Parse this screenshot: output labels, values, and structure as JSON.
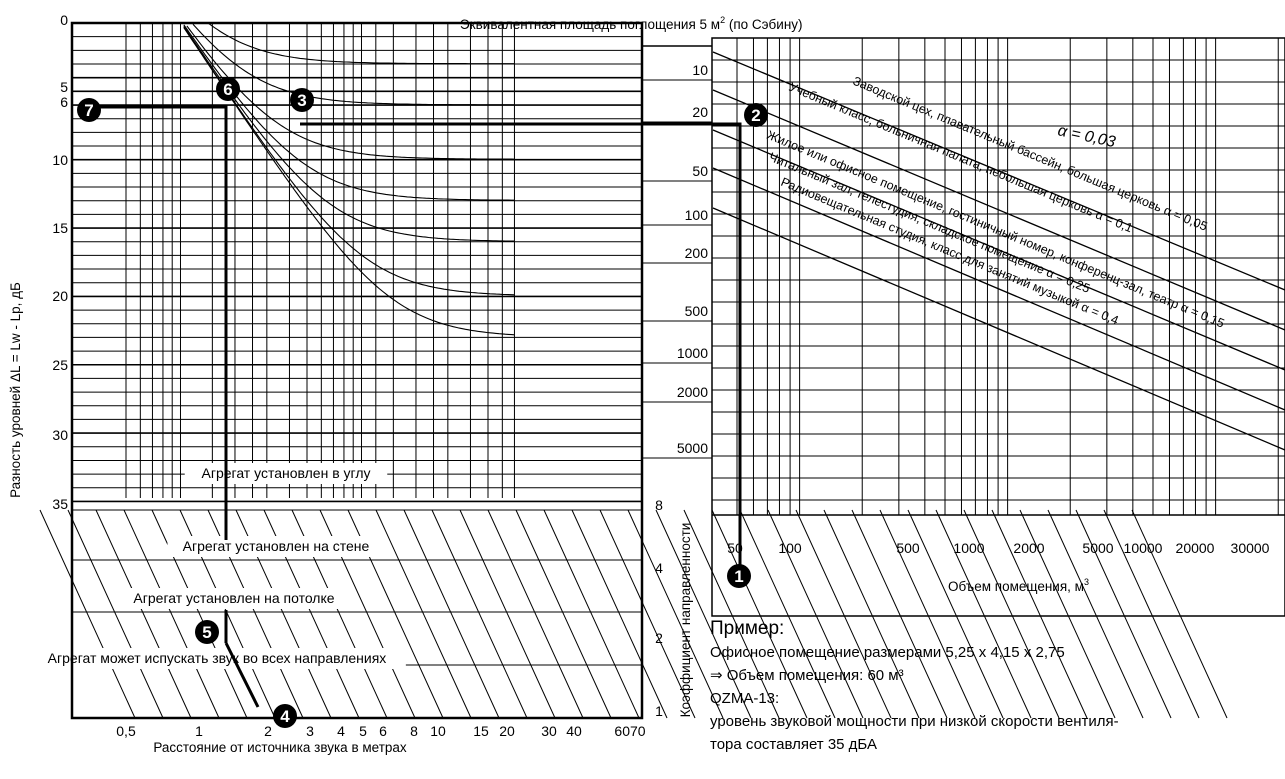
{
  "chart_data": [
    {
      "type": "line",
      "title": "",
      "ylabel": "Разность уровней ΔL = Lw - Lp, дБ",
      "xlabel": "Расстояние от источника звука в метрах",
      "x_scale": "log",
      "y_ticks": [
        "0",
        "5",
        "6",
        "10",
        "15",
        "20",
        "25",
        "30",
        "35"
      ],
      "x_ticks": [
        "0,5",
        "1",
        "2",
        "3",
        "4",
        "5",
        "6",
        "8",
        "10",
        "15",
        "20",
        "30",
        "40",
        "6070"
      ],
      "right_ticks": [
        "8",
        "4",
        "2",
        "1"
      ],
      "right_axis_label": "Коэффициент направленности",
      "bar_labels": [
        "Агрегат установлен в углу",
        "Агрегат установлен на стене",
        "Агрегат установлен на потолке",
        "Агрегат может испускать звук во всех направлениях"
      ],
      "area_title_main": "Эквивалентная площадь поглощения 5 м",
      "area_title_sup": "2",
      "area_title_tail": " (по Сэбину)",
      "area_ticks": [
        "10",
        "20",
        "50",
        "100",
        "200",
        "500",
        "1000",
        "2000",
        "5000"
      ],
      "markers": [
        {
          "id": "3",
          "label": "3"
        },
        {
          "id": "4",
          "label": "4"
        },
        {
          "id": "5",
          "label": "5"
        },
        {
          "id": "6",
          "label": "6"
        },
        {
          "id": "7",
          "label": "7"
        }
      ]
    },
    {
      "type": "line",
      "title": "",
      "xlabel_main": "Объем помещения, м",
      "xlabel_sup": "3",
      "x_scale": "log",
      "x_ticks": [
        "50",
        "100",
        "500",
        "1000",
        "2000",
        "5000",
        "10000",
        "20000",
        "30000"
      ],
      "alpha_label": "α = 0,03",
      "series": [
        {
          "name": "Заводской цех, плавательный бассейн, большая церковь α = 0,05",
          "alpha": 0.05
        },
        {
          "name": "Учебный класс, больничная палата, небольшая церковь α = 0,1",
          "alpha": 0.1
        },
        {
          "name": "Жилое или офисное помещение, гостиничный номер, конференц-зал, театр α = 0,15",
          "alpha": 0.15
        },
        {
          "name": "Читальный зал, телестудия, складское помещение α = 0,25",
          "alpha": 0.25
        },
        {
          "name": "Радиовещательная студия, класс для занятий музыкой α = 0,4",
          "alpha": 0.4
        }
      ],
      "markers": [
        {
          "id": "1",
          "label": "1"
        },
        {
          "id": "2",
          "label": "2"
        }
      ]
    }
  ],
  "example": {
    "title": "Пример:",
    "line1": "Офисное помещение размерами 5,25 x 4,15 x 2,75",
    "line2": "⇒ Объем помещения: 60 м³",
    "line3": "QZMA-13:",
    "line4": "уровень звуковой мощности при низкой скорости вентиля-",
    "line5": "тора составляет 35 дБА"
  }
}
